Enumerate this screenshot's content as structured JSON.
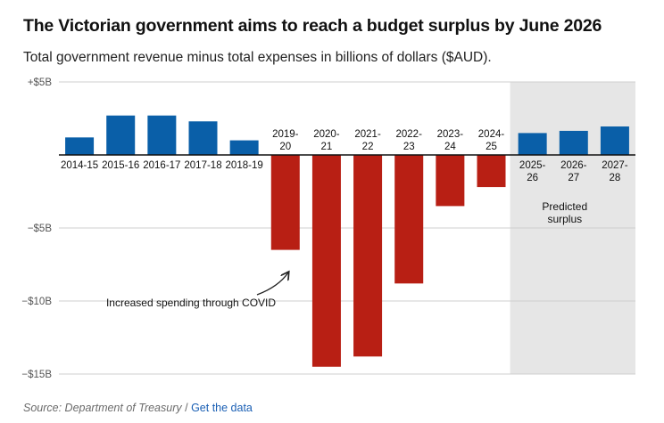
{
  "header": {
    "title": "The Victorian government aims to reach a budget surplus by June 2026",
    "subtitle": "Total government revenue minus total expenses in billions of dollars ($AUD)."
  },
  "footer": {
    "source": "Source: Department of Treasury",
    "separator": "/",
    "link": "Get the data"
  },
  "colors": {
    "surplus": "#0a5fa8",
    "deficit": "#b81f14",
    "predicted_band": "#e6e6e6",
    "gridline": "#cfcfcf"
  },
  "chart_data": {
    "type": "bar",
    "title": "The Victorian government aims to reach a budget surplus by June 2026",
    "subtitle": "Total government revenue minus total expenses in billions of dollars ($AUD).",
    "categories": [
      "2014-15",
      "2015-16",
      "2016-17",
      "2017-18",
      "2018-19",
      "2019-20",
      "2020-21",
      "2021-22",
      "2022-23",
      "2023-24",
      "2024-25",
      "2025-26",
      "2026-27",
      "2027-28"
    ],
    "category_labels": [
      [
        "2014-15"
      ],
      [
        "2015-16"
      ],
      [
        "2016-17"
      ],
      [
        "2017-18"
      ],
      [
        "2018-19"
      ],
      [
        "2019-",
        "20"
      ],
      [
        "2020-",
        "21"
      ],
      [
        "2021-",
        "22"
      ],
      [
        "2022-",
        "23"
      ],
      [
        "2023-",
        "24"
      ],
      [
        "2024-",
        "25"
      ],
      [
        "2025-",
        "26"
      ],
      [
        "2026-",
        "27"
      ],
      [
        "2027-",
        "28"
      ]
    ],
    "values": [
      1.2,
      2.7,
      2.7,
      2.3,
      1.0,
      -6.5,
      -14.5,
      -13.8,
      -8.8,
      -3.5,
      -2.2,
      1.5,
      1.65,
      1.95
    ],
    "ylim": [
      -15,
      5
    ],
    "yticks": [
      5,
      -5,
      -10,
      -15
    ],
    "ytick_labels": [
      "+$5B",
      "−$5B",
      "−$10B",
      "−$15B"
    ],
    "grid": true,
    "predicted_range": [
      "2025-26",
      "2027-28"
    ],
    "annotations": {
      "covid": "Increased spending through COVID",
      "predicted": [
        "Predicted",
        "surplus"
      ]
    }
  }
}
